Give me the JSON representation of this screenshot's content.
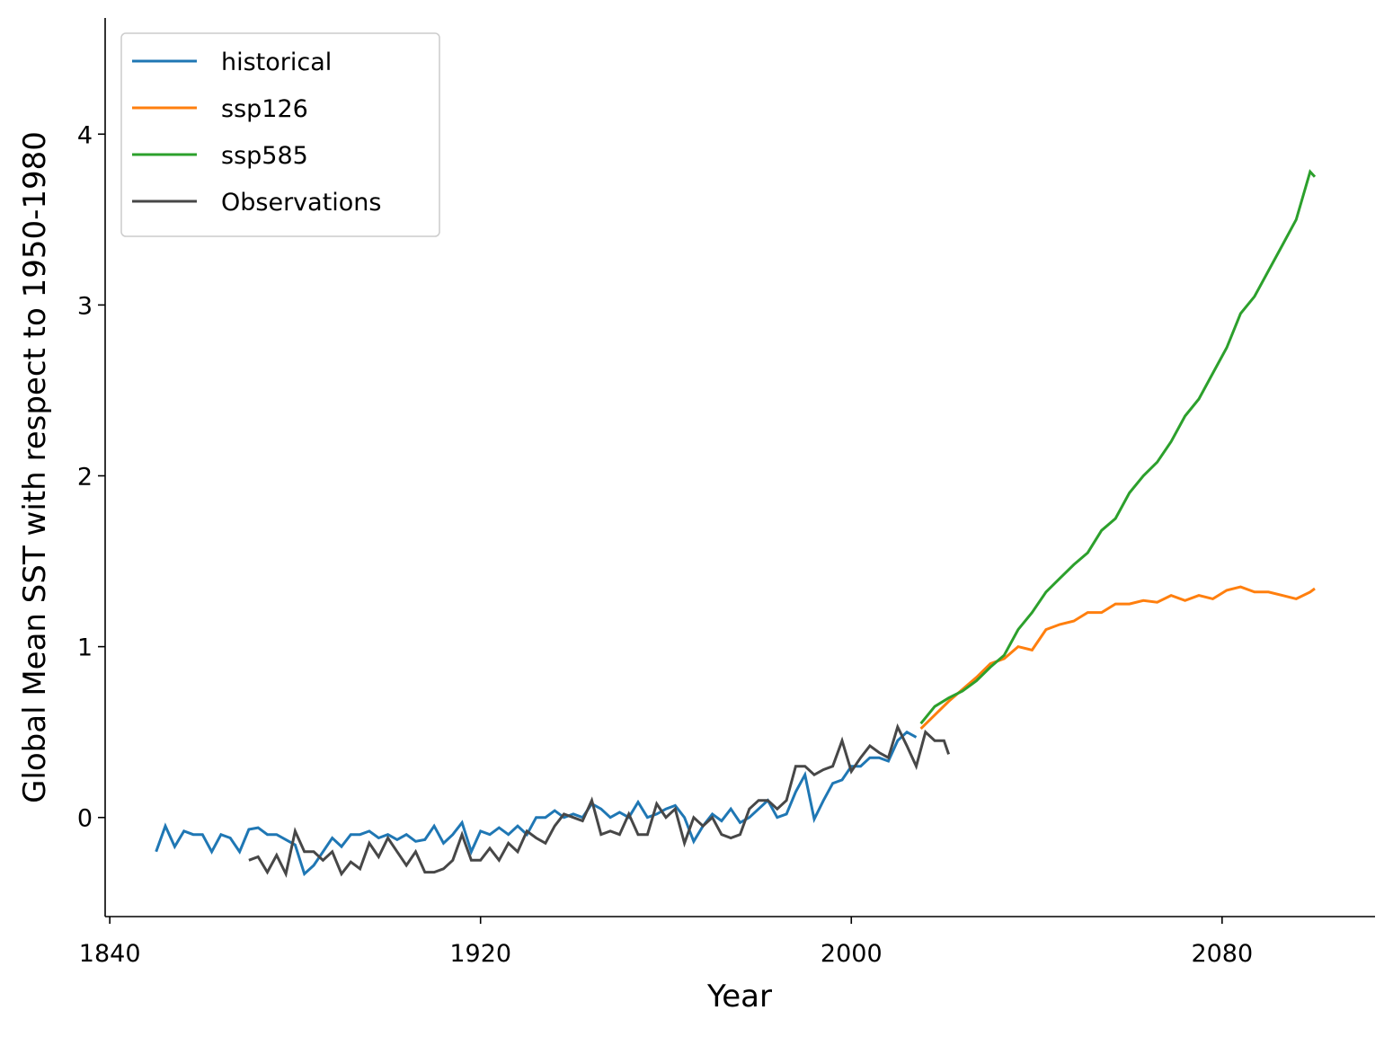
{
  "chart_data": {
    "type": "line",
    "xlabel": "Year",
    "ylabel": "Global Mean SST with respect to 1950-1980",
    "xlim": [
      1839,
      2113
    ],
    "xticks": [
      1840,
      1920,
      2000,
      2080
    ],
    "ylim": [
      -0.58,
      4.68
    ],
    "yticks": [
      0,
      1,
      2,
      3,
      4
    ],
    "legend": "upper left",
    "series": [
      {
        "name": "historical",
        "color": "#1f77b4",
        "x": [
          1850,
          1852,
          1854,
          1856,
          1858,
          1860,
          1862,
          1864,
          1866,
          1868,
          1870,
          1872,
          1874,
          1876,
          1878,
          1880,
          1882,
          1884,
          1886,
          1888,
          1890,
          1892,
          1894,
          1896,
          1898,
          1900,
          1902,
          1904,
          1906,
          1908,
          1910,
          1912,
          1914,
          1916,
          1918,
          1920,
          1922,
          1924,
          1926,
          1928,
          1930,
          1932,
          1934,
          1936,
          1938,
          1940,
          1942,
          1944,
          1946,
          1948,
          1950,
          1952,
          1954,
          1956,
          1958,
          1960,
          1962,
          1964,
          1966,
          1968,
          1970,
          1972,
          1974,
          1976,
          1978,
          1980,
          1982,
          1984,
          1986,
          1988,
          1990,
          1992,
          1994,
          1996,
          1998,
          2000,
          2002,
          2004,
          2006,
          2008,
          2010,
          2012,
          2014
        ],
        "values": [
          -0.2,
          -0.05,
          -0.17,
          -0.08,
          -0.1,
          -0.1,
          -0.2,
          -0.1,
          -0.12,
          -0.2,
          -0.07,
          -0.06,
          -0.1,
          -0.1,
          -0.13,
          -0.16,
          -0.33,
          -0.28,
          -0.2,
          -0.12,
          -0.17,
          -0.1,
          -0.1,
          -0.08,
          -0.12,
          -0.1,
          -0.13,
          -0.1,
          -0.14,
          -0.13,
          -0.05,
          -0.15,
          -0.1,
          -0.03,
          -0.2,
          -0.08,
          -0.1,
          -0.06,
          -0.1,
          -0.05,
          -0.1,
          0.0,
          0.0,
          0.04,
          0.0,
          0.02,
          0.0,
          0.08,
          0.05,
          0.0,
          0.03,
          0.0,
          0.09,
          0.0,
          0.02,
          0.05,
          0.07,
          0.0,
          -0.14,
          -0.05,
          0.02,
          -0.02,
          0.05,
          -0.03,
          0.0,
          0.05,
          0.1,
          0.0,
          0.02,
          0.15,
          0.25,
          -0.01,
          0.1,
          0.2,
          0.22,
          0.3,
          0.3,
          0.35,
          0.35,
          0.33,
          0.45,
          0.5,
          0.47
        ]
      },
      {
        "name": "ssp126",
        "color": "#ff7f0e",
        "x": [
          2015,
          2018,
          2021,
          2024,
          2027,
          2030,
          2033,
          2036,
          2039,
          2042,
          2045,
          2048,
          2051,
          2054,
          2057,
          2060,
          2063,
          2066,
          2069,
          2072,
          2075,
          2078,
          2081,
          2084,
          2087,
          2090,
          2093,
          2096,
          2099,
          2100
        ],
        "values": [
          0.52,
          0.6,
          0.68,
          0.75,
          0.82,
          0.9,
          0.93,
          1.0,
          0.98,
          1.1,
          1.13,
          1.15,
          1.2,
          1.2,
          1.25,
          1.25,
          1.27,
          1.26,
          1.3,
          1.27,
          1.3,
          1.28,
          1.33,
          1.35,
          1.32,
          1.32,
          1.3,
          1.28,
          1.32,
          1.34
        ]
      },
      {
        "name": "ssp585",
        "color": "#2ca02c",
        "x": [
          2015,
          2018,
          2021,
          2024,
          2027,
          2030,
          2033,
          2036,
          2039,
          2042,
          2045,
          2048,
          2051,
          2054,
          2057,
          2060,
          2063,
          2066,
          2069,
          2072,
          2075,
          2078,
          2081,
          2084,
          2087,
          2090,
          2093,
          2096,
          2099,
          2100
        ],
        "values": [
          0.55,
          0.65,
          0.7,
          0.74,
          0.8,
          0.88,
          0.95,
          1.1,
          1.2,
          1.32,
          1.4,
          1.48,
          1.55,
          1.68,
          1.75,
          1.9,
          2.0,
          2.08,
          2.2,
          2.35,
          2.45,
          2.6,
          2.75,
          2.95,
          3.05,
          3.2,
          3.35,
          3.5,
          3.78,
          3.75
        ]
      },
      {
        "name": "Observations",
        "color": "#474747",
        "x": [
          1870,
          1872,
          1874,
          1876,
          1878,
          1880,
          1882,
          1884,
          1886,
          1888,
          1890,
          1892,
          1894,
          1896,
          1898,
          1900,
          1902,
          1904,
          1906,
          1908,
          1910,
          1912,
          1914,
          1916,
          1918,
          1920,
          1922,
          1924,
          1926,
          1928,
          1930,
          1932,
          1934,
          1936,
          1938,
          1940,
          1942,
          1944,
          1946,
          1948,
          1950,
          1952,
          1954,
          1956,
          1958,
          1960,
          1962,
          1964,
          1966,
          1968,
          1970,
          1972,
          1974,
          1976,
          1978,
          1980,
          1982,
          1984,
          1986,
          1988,
          1990,
          1992,
          1994,
          1996,
          1998,
          2000,
          2002,
          2004,
          2006,
          2008,
          2010,
          2012,
          2014,
          2016,
          2018,
          2020,
          2021
        ],
        "values": [
          -0.25,
          -0.23,
          -0.32,
          -0.22,
          -0.33,
          -0.08,
          -0.2,
          -0.2,
          -0.25,
          -0.2,
          -0.33,
          -0.26,
          -0.3,
          -0.15,
          -0.23,
          -0.12,
          -0.2,
          -0.28,
          -0.2,
          -0.32,
          -0.32,
          -0.3,
          -0.25,
          -0.1,
          -0.25,
          -0.25,
          -0.18,
          -0.25,
          -0.15,
          -0.2,
          -0.08,
          -0.12,
          -0.15,
          -0.05,
          0.02,
          0.0,
          -0.02,
          0.1,
          -0.1,
          -0.08,
          -0.1,
          0.02,
          -0.1,
          -0.1,
          0.08,
          0.0,
          0.05,
          -0.15,
          0.0,
          -0.05,
          0.0,
          -0.1,
          -0.12,
          -0.1,
          0.05,
          0.1,
          0.1,
          0.05,
          0.1,
          0.3,
          0.3,
          0.25,
          0.28,
          0.3,
          0.45,
          0.27,
          0.35,
          0.42,
          0.38,
          0.35,
          0.53,
          0.42,
          0.3,
          0.5,
          0.45,
          0.45,
          0.37
        ]
      }
    ]
  }
}
